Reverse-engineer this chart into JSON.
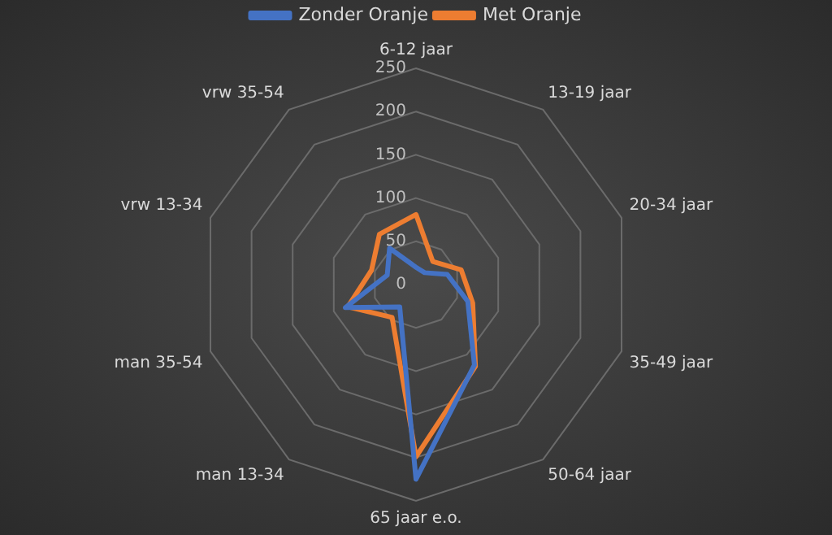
{
  "chart_data": {
    "type": "radar",
    "categories": [
      "6-12 jaar",
      "13-19 jaar",
      "20-34 jaar",
      "35-49 jaar",
      "50-64 jaar",
      "65 jaar e.o.",
      "man 13-34",
      "man 35-54",
      "vrw 13-34",
      "vrw 35-54"
    ],
    "series": [
      {
        "name": "Zonder Oranje",
        "color": "#4472c4",
        "values": [
          20,
          17,
          38,
          63,
          115,
          225,
          32,
          86,
          35,
          52
        ]
      },
      {
        "name": "Met Oranje",
        "color": "#ed7d31",
        "values": [
          81,
          33,
          55,
          69,
          117,
          199,
          47,
          83,
          54,
          72
        ]
      }
    ],
    "ylim": [
      0,
      250
    ],
    "yticks": [
      0,
      50,
      100,
      150,
      200,
      250
    ],
    "grid": true,
    "legend": "top",
    "marker": "none"
  }
}
